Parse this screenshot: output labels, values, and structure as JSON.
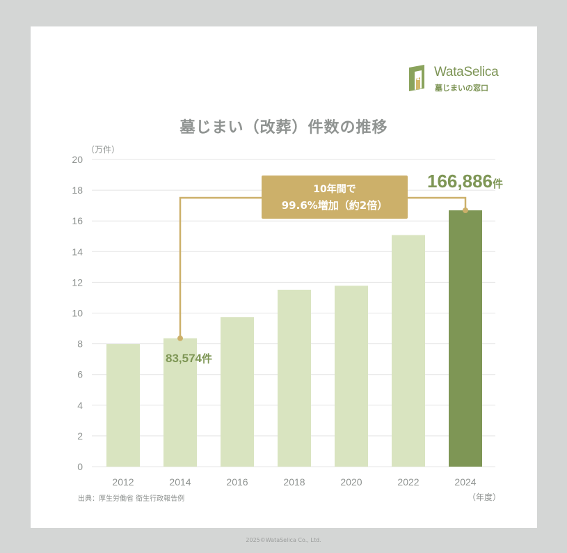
{
  "logo": {
    "name": "WataSelica",
    "subtitle": "墓じまいの窓口",
    "mark_number": "1"
  },
  "title": "墓じまい（改葬）件数の推移",
  "unit_label": "（万件）",
  "xunit_label": "（年度）",
  "source": "出典：厚生労働省 衛生行政報告例",
  "footer": "2025©WataSelica Co., Ltd.",
  "colors": {
    "bar": "#d9e4c0",
    "bar_highlight": "#7e9655",
    "annotation": "#ccb06a",
    "label_green": "#7e9655",
    "axis_text": "#8f9391",
    "grid": "#e4e4e4",
    "background": "#d4d6d5"
  },
  "annotations": {
    "callout_line1": "10年間で",
    "callout_line2": "99.6%増加（約2倍）",
    "start_value": "83,574",
    "end_value": "166,886",
    "suffix": "件"
  },
  "chart_data": {
    "type": "bar",
    "title": "墓じまい（改葬）件数の推移",
    "xlabel": "（年度）",
    "ylabel": "（万件）",
    "categories": [
      "2012",
      "2014",
      "2016",
      "2018",
      "2020",
      "2022",
      "2024"
    ],
    "values": [
      7.98,
      8.36,
      9.74,
      11.52,
      11.78,
      15.08,
      16.69
    ],
    "highlight_category": "2024",
    "ylim": [
      0,
      20
    ],
    "yticks": [
      0,
      2,
      4,
      6,
      8,
      10,
      12,
      14,
      16,
      18,
      20
    ],
    "grid": true,
    "legend": "none"
  }
}
